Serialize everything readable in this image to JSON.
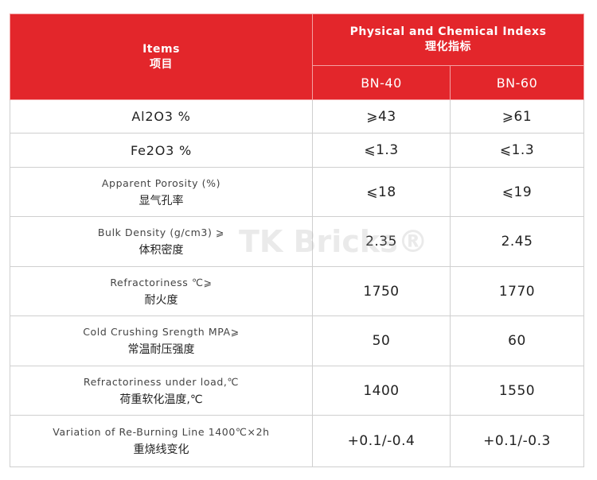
{
  "header": {
    "items_en": "Items",
    "items_zh": "项目",
    "group_en": "Physical and Chemical Indexs",
    "group_zh": "理化指标",
    "columns": [
      "BN-40",
      "BN-60"
    ]
  },
  "rows": [
    {
      "label": [
        "Al2O3 %"
      ],
      "values": [
        "⩾43",
        "⩾61"
      ]
    },
    {
      "label": [
        "Fe2O3 %"
      ],
      "values": [
        "⩽1.3",
        "⩽1.3"
      ]
    },
    {
      "label": [
        "Apparent Porosity (%)",
        "显气孔率"
      ],
      "values": [
        "⩽18",
        "⩽19"
      ]
    },
    {
      "label": [
        "Bulk Density (g/cm3) ⩾",
        "体积密度"
      ],
      "values": [
        "2.35",
        "2.45"
      ]
    },
    {
      "label": [
        "Refractoriness ℃⩾",
        "耐火度"
      ],
      "values": [
        "1750",
        "1770"
      ]
    },
    {
      "label": [
        "Cold Crushing Srength MPA⩾",
        "常温耐压强度"
      ],
      "values": [
        "50",
        "60"
      ]
    },
    {
      "label": [
        "Refractoriness under load,℃",
        "荷重软化温度,℃"
      ],
      "values": [
        "1400",
        "1550"
      ]
    },
    {
      "label": [
        "Variation of Re-Burning Line 1400℃×2h",
        "重烧线变化"
      ],
      "values": [
        "+0.1/-0.4",
        "+0.1/-0.3"
      ]
    }
  ],
  "watermark": "TK Bricks®"
}
